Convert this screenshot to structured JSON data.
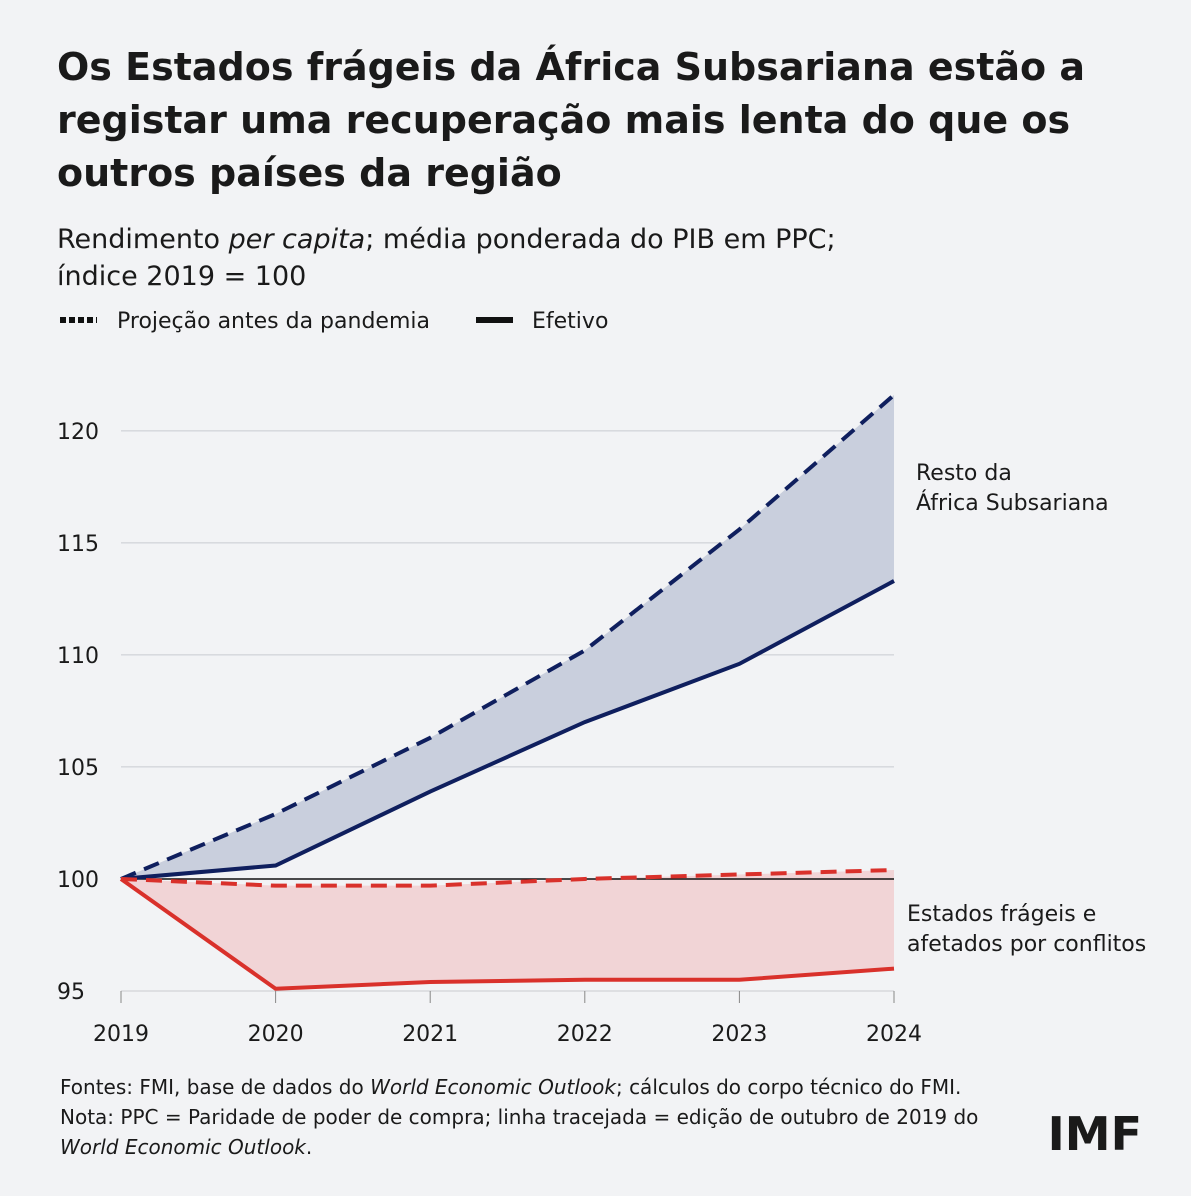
{
  "chart_data": {
    "type": "line",
    "title": [
      "Os Estados frágeis da África Subsariana estão a",
      "registar uma recuperação mais lenta do que os",
      "outros países da região"
    ],
    "subtitle": [
      [
        {
          "text": "Rendimento ",
          "italic": false
        },
        {
          "text": "per capita",
          "italic": true
        },
        {
          "text": "; média ponderada do PIB em PPC;",
          "italic": false
        }
      ],
      [
        {
          "text": "índice 2019 = 100",
          "italic": false
        }
      ]
    ],
    "legend": {
      "projection": "Projeção antes da pandemia",
      "actual": "Efetivo"
    },
    "categories": [
      "2019",
      "2020",
      "2021",
      "2022",
      "2023",
      "2024"
    ],
    "series": [
      {
        "name": [
          "Resto da",
          "África Subsariana"
        ],
        "color": "#0f1f5e",
        "fill": "#c9cfdd",
        "projection": [
          100,
          102.9,
          106.3,
          110.2,
          115.6,
          121.6
        ],
        "actual": [
          100,
          100.6,
          103.9,
          107.0,
          109.6,
          113.3
        ]
      },
      {
        "name": [
          "Estados frágeis e",
          "afetados por conflitos"
        ],
        "color": "#d9312b",
        "fill": "#f1d4d6",
        "projection": [
          100,
          99.7,
          99.7,
          100.0,
          100.2,
          100.4
        ],
        "actual": [
          100,
          95.1,
          95.4,
          95.5,
          95.5,
          96.0
        ]
      }
    ],
    "reference_line": 100,
    "ylim": [
      95,
      122
    ],
    "yticks": [
      95,
      100,
      105,
      110,
      115,
      120
    ],
    "grid": true,
    "notes": [
      [
        {
          "text": "Fontes: FMI, base de dados do ",
          "italic": false
        },
        {
          "text": "World Economic Outlook",
          "italic": true
        },
        {
          "text": "; cálculos do corpo técnico do FMI.",
          "italic": false
        }
      ],
      [
        {
          "text": "Nota: PPC = Paridade de poder de compra; linha tracejada = edição de outubro de 2019 do",
          "italic": false
        }
      ],
      [
        {
          "text": "World Economic Outlook",
          "italic": true
        },
        {
          "text": ".",
          "italic": false
        }
      ]
    ],
    "logo": "IMF"
  }
}
